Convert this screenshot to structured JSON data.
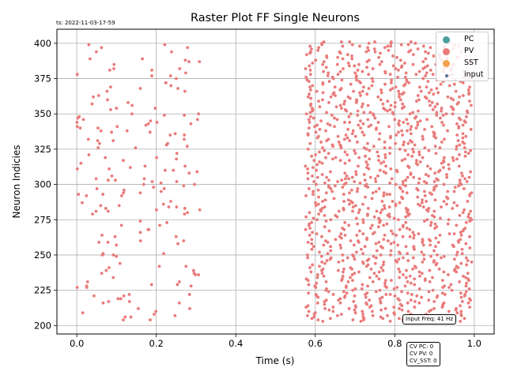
{
  "chart_data": {
    "type": "scatter",
    "title": "Raster Plot FF Single Neurons",
    "xlabel": "Time (s)",
    "ylabel": "Neuron Indicies",
    "xlim": [
      -0.05,
      1.05
    ],
    "ylim": [
      194,
      410
    ],
    "xticks": [
      0.0,
      0.2,
      0.4,
      0.6,
      0.8,
      1.0
    ],
    "xtick_labels": [
      "0.0",
      "0.2",
      "0.4",
      "0.6",
      "0.8",
      "1.0"
    ],
    "yticks": [
      200,
      225,
      250,
      275,
      300,
      325,
      350,
      375,
      400
    ],
    "ytick_labels": [
      "200",
      "225",
      "250",
      "275",
      "300",
      "325",
      "350",
      "375",
      "400"
    ],
    "grid": true,
    "legend_position": "top-right",
    "series": [
      {
        "name": "PC",
        "color": "#4c9e9e",
        "count": 0
      },
      {
        "name": "PV",
        "color": "#ea7b7b",
        "count": "many"
      },
      {
        "name": "SST",
        "color": "#f5a04a",
        "count": 0
      },
      {
        "name": "input",
        "color": "#5a6f9a",
        "count": 0
      }
    ],
    "pv_neuron_range": [
      203,
      401
    ],
    "pv_spike_windows": [
      {
        "t_start": 0.0,
        "t_end": 0.31,
        "density": "sparse"
      },
      {
        "t_start": 0.575,
        "t_end": 1.0,
        "density": "dense"
      }
    ]
  },
  "annotations": {
    "timestamp": "ts: 2022-11-03-17-59",
    "input_freq": "Input Freq: 41 Hz",
    "cv_pc": "CV PC: 0",
    "cv_pv": "CV PV: 0",
    "cv_sst": "CV_SST: 0"
  },
  "legend": {
    "items": [
      {
        "label": "PC",
        "color": "#4c9e9e"
      },
      {
        "label": "PV",
        "color": "#ea7b7b"
      },
      {
        "label": "SST",
        "color": "#f5a04a"
      },
      {
        "label": "input",
        "color": "#5a6f9a"
      }
    ]
  }
}
